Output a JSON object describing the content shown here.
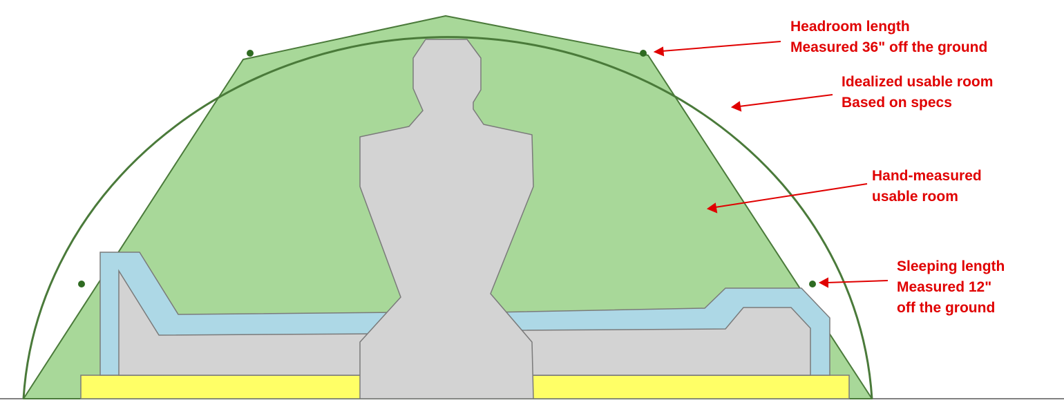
{
  "colors": {
    "usable_room_fill": "#a8d899",
    "outline_green": "#4a7a3a",
    "dot_green": "#2f6b22",
    "figure_fill": "#d3d3d3",
    "figure_stroke": "#7a7a7a",
    "bag_fill": "#add8e6",
    "pad_fill": "#ffff66",
    "annotation_red": "#e00000",
    "ground": "#808080"
  },
  "annotations": {
    "headroom": {
      "line1": "Headroom length",
      "line2": "Measured 36\" off the ground"
    },
    "idealized": {
      "line1": "Idealized usable room",
      "line2": "Based on specs"
    },
    "hand_measured": {
      "line1": "Hand-measured",
      "line2": "usable room"
    },
    "sleeping": {
      "line1": "Sleeping length",
      "line2": "Measured 12\"",
      "line3": "off the ground"
    }
  }
}
